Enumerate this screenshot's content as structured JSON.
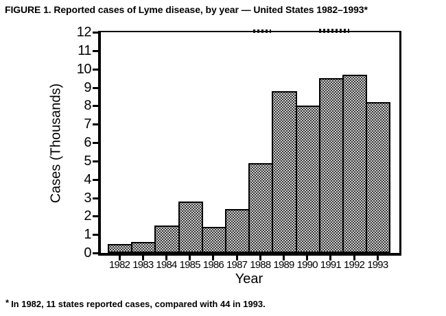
{
  "figure_title": "FIGURE 1. Reported cases of Lyme disease, by year — United States 1982–1993*",
  "footnote": {
    "marker": "*",
    "text": "In 1982, 11 states reported cases, compared with 44 in 1993."
  },
  "chart_data": {
    "type": "bar",
    "title": "FIGURE 1. Reported cases of Lyme disease, by year — United States 1982–1993*",
    "categories": [
      "1982",
      "1983",
      "1984",
      "1985",
      "1986",
      "1987",
      "1988",
      "1989",
      "1990",
      "1991",
      "1992",
      "1993"
    ],
    "values": [
      0.5,
      0.6,
      1.5,
      2.8,
      1.4,
      2.4,
      4.9,
      8.8,
      8.0,
      9.5,
      9.7,
      8.2
    ],
    "values_unit": "thousands of reported cases",
    "xlabel": "Year",
    "ylabel": "Cases (Thousands)",
    "ylim": [
      0,
      12
    ],
    "ytick_step": 1,
    "grid": false,
    "legend": null,
    "style": {
      "bar_fill": "halftone-dot-pattern",
      "bar_fill_base": "#dedede",
      "bar_dot_color": "#2a2a2a",
      "bar_border_color": "#000000",
      "axis_color": "#000000",
      "text_color": "#000000",
      "background": "#ffffff"
    }
  }
}
